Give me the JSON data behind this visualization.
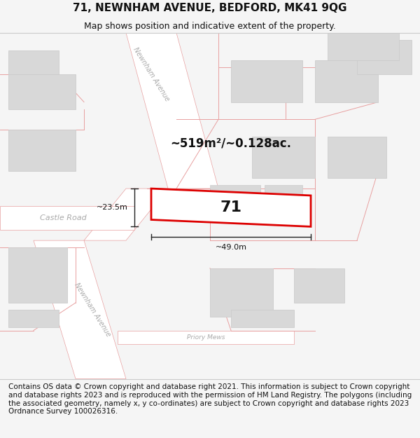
{
  "title": "71, NEWNHAM AVENUE, BEDFORD, MK41 9QG",
  "subtitle": "Map shows position and indicative extent of the property.",
  "footer": "Contains OS data © Crown copyright and database right 2021. This information is subject to Crown copyright and database rights 2023 and is reproduced with the permission of HM Land Registry. The polygons (including the associated geometry, namely x, y co-ordinates) are subject to Crown copyright and database rights 2023 Ordnance Survey 100026316.",
  "area_label": "~519m²/~0.128ac.",
  "width_label": "~49.0m",
  "height_label": "~23.5m",
  "number_label": "71",
  "bg_color": "#f5f5f5",
  "map_bg": "#f0f0f0",
  "road_fill": "#ffffff",
  "road_stroke": "#e8a0a0",
  "building_fill": "#d8d8d8",
  "building_stroke": "#c0c0c0",
  "highlight_stroke": "#dd0000",
  "highlight_fill": "#ffffff",
  "road_label_color": "#aaaaaa",
  "dim_line_color": "#222222",
  "title_fontsize": 11,
  "subtitle_fontsize": 9,
  "footer_fontsize": 7.5
}
